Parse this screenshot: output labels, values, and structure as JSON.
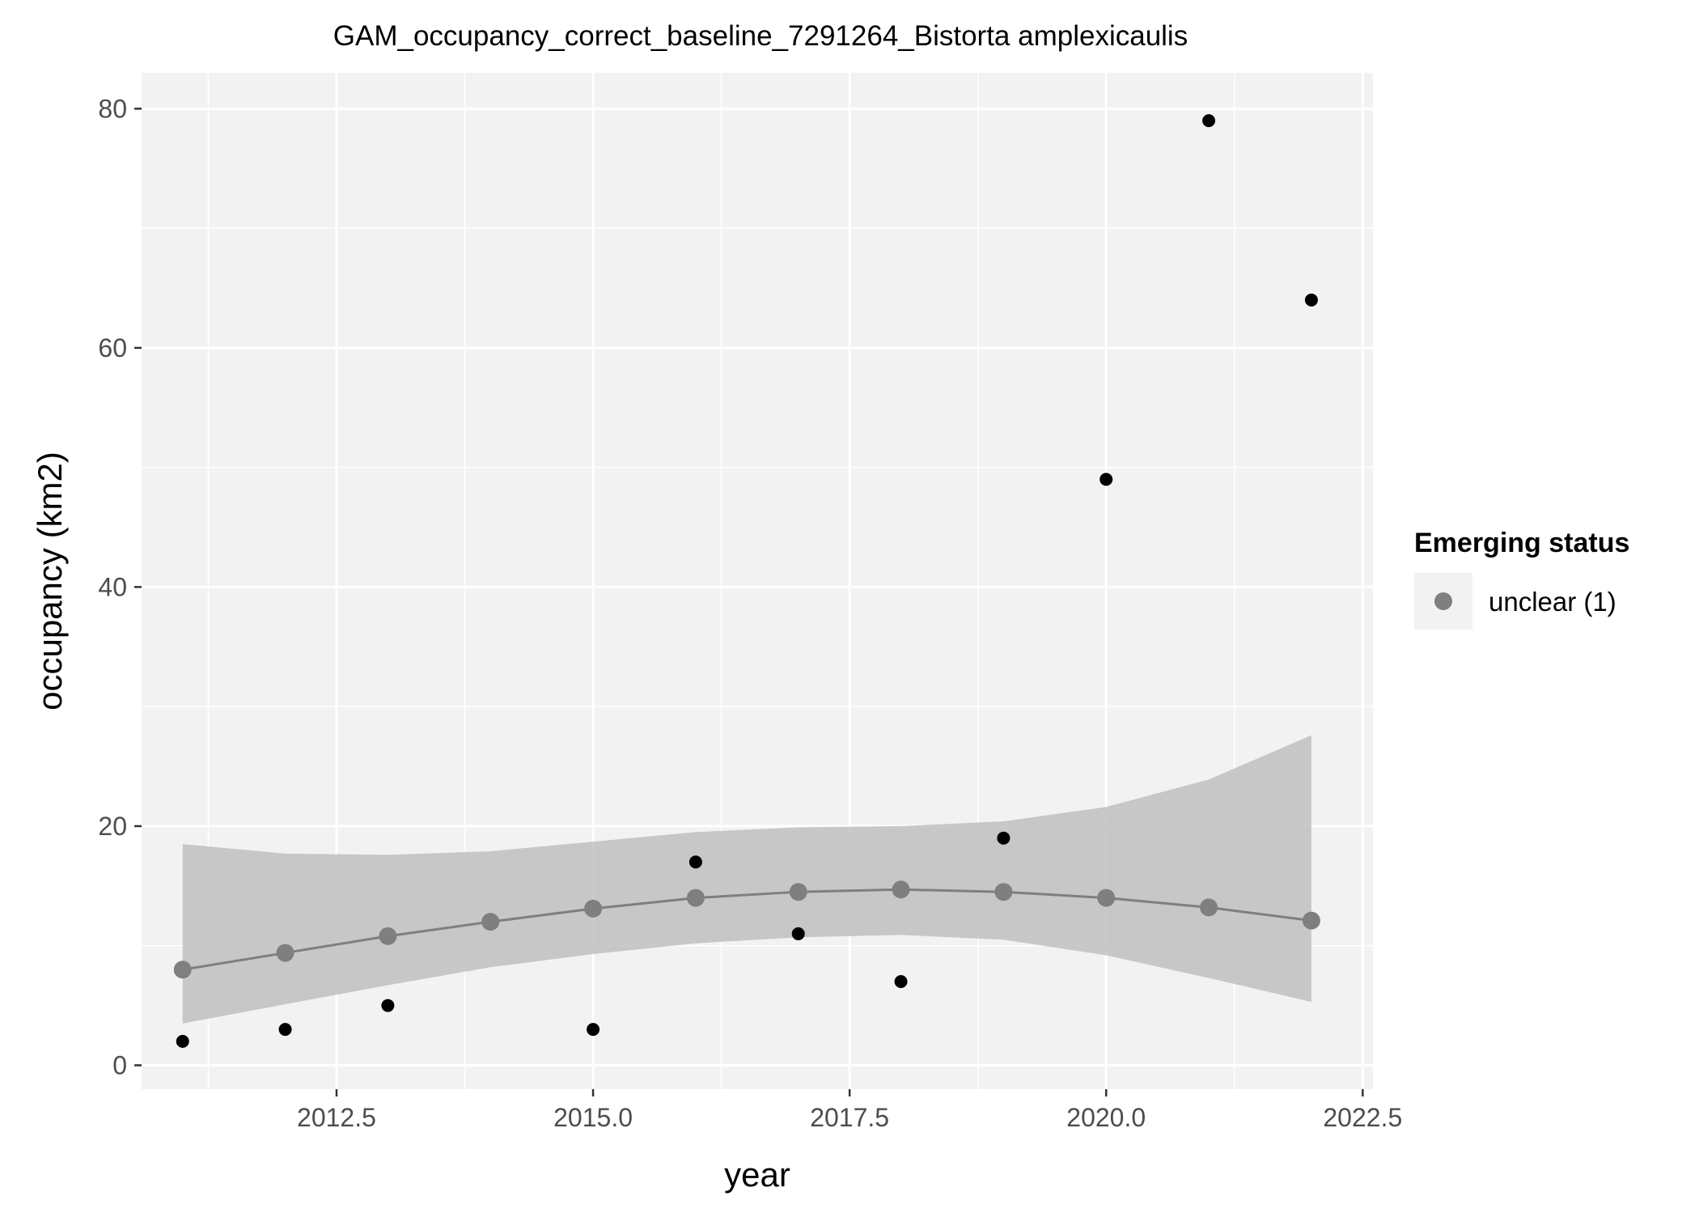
{
  "chart_data": {
    "type": "scatter",
    "title": "GAM_occupancy_correct_baseline_7291264_Bistorta amplexicaulis",
    "xlabel": "year",
    "ylabel": "occupancy (km2)",
    "xlim": [
      2010.6,
      2022.6
    ],
    "ylim": [
      -2,
      83
    ],
    "x_ticks": [
      2012.5,
      2015.0,
      2017.5,
      2020.0,
      2022.5
    ],
    "x_tick_labels": [
      "2012.5",
      "2015.0",
      "2017.5",
      "2020.0",
      "2022.5"
    ],
    "y_ticks": [
      0,
      20,
      40,
      60,
      80
    ],
    "y_tick_labels": [
      "0",
      "20",
      "40",
      "60",
      "80"
    ],
    "grid": true,
    "legend_position": "right",
    "legend": {
      "title": "Emerging status",
      "entries": [
        {
          "label": "unclear (1)",
          "color": "#7f7f7f"
        }
      ]
    },
    "observed": {
      "color": "#000000",
      "x": [
        2011,
        2012,
        2013,
        2015,
        2016,
        2017,
        2018,
        2019,
        2020,
        2021,
        2022
      ],
      "y": [
        2,
        3,
        5,
        3,
        17,
        11,
        7,
        19,
        49,
        79,
        64
      ]
    },
    "fitted": {
      "color": "#7f7f7f",
      "x": [
        2011,
        2012,
        2013,
        2014,
        2015,
        2016,
        2017,
        2018,
        2019,
        2020,
        2021,
        2022
      ],
      "y": [
        8.0,
        9.4,
        10.8,
        12.0,
        13.1,
        14.0,
        14.5,
        14.7,
        14.5,
        14.0,
        13.2,
        12.1
      ],
      "ci_lower": [
        3.5,
        5.1,
        6.7,
        8.2,
        9.3,
        10.2,
        10.7,
        10.9,
        10.5,
        9.2,
        7.3,
        5.3
      ],
      "ci_upper": [
        18.5,
        17.7,
        17.6,
        17.9,
        18.7,
        19.5,
        19.9,
        20.0,
        20.4,
        21.6,
        23.9,
        27.6
      ],
      "ribbon_color": "#bfbfbf"
    },
    "panel_background": "#f2f2f2",
    "grid_color": "#ffffff"
  }
}
